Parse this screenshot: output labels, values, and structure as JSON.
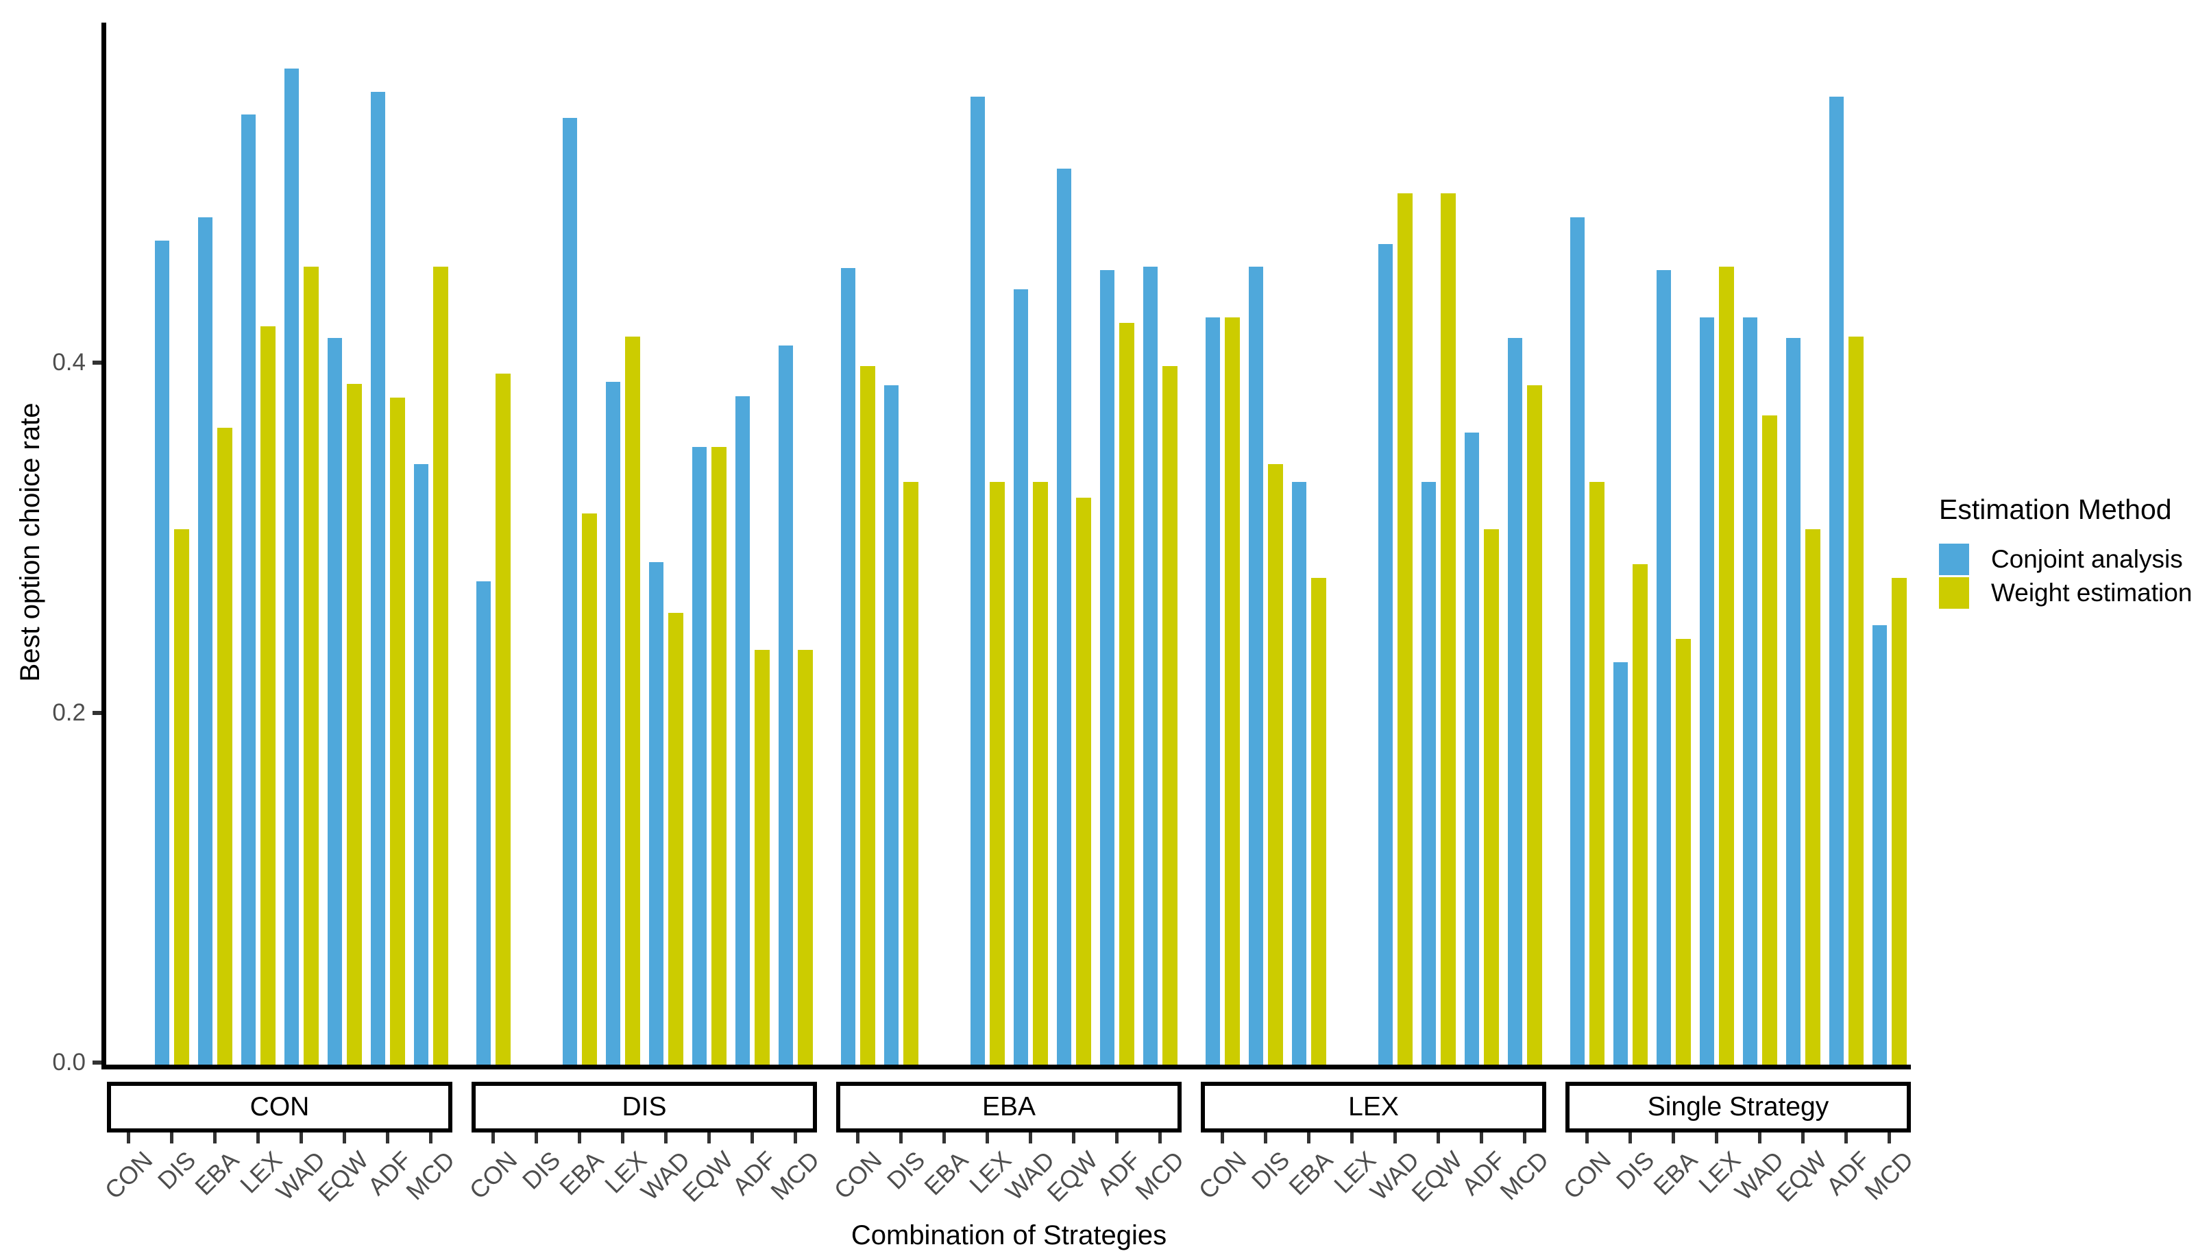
{
  "figure": {
    "background": "#FFFFFF",
    "y_axis": {
      "title": "Best option choice rate",
      "ticks": [
        {
          "label": "0.0",
          "value": 0.0
        },
        {
          "label": "0.2",
          "value": 0.2
        },
        {
          "label": "0.4",
          "value": 0.4
        }
      ]
    },
    "x_axis": {
      "title": "Combination of Strategies"
    },
    "legend": {
      "title": "Estimation Method",
      "position": "right",
      "items": [
        {
          "label": "Conjoint analysis",
          "color": "#4FA8DB"
        },
        {
          "label": "Weight estimation",
          "color": "#CCCC00"
        }
      ]
    }
  },
  "chart_data": {
    "type": "bar",
    "grouped": true,
    "faceted": true,
    "title": "",
    "xlabel": "Combination of Strategies",
    "ylabel": "Best option choice rate",
    "ylim": [
      0,
      0.595
    ],
    "ytick_interval": 0.2,
    "grid": false,
    "legend_position": "right",
    "categories": [
      "CON",
      "DIS",
      "EBA",
      "LEX",
      "WAD",
      "EQW",
      "ADF",
      "MCD"
    ],
    "series_names": [
      "Conjoint analysis",
      "Weight estimation"
    ],
    "facets": [
      {
        "label": "CON",
        "series": [
          {
            "name": "Conjoint analysis",
            "values": [
              null,
              0.47,
              0.483,
              0.542,
              0.568,
              0.414,
              0.555,
              0.342
            ]
          },
          {
            "name": "Weight estimation",
            "values": [
              null,
              0.305,
              0.363,
              0.421,
              0.455,
              0.388,
              0.38,
              0.455
            ]
          }
        ]
      },
      {
        "label": "DIS",
        "series": [
          {
            "name": "Conjoint analysis",
            "values": [
              0.275,
              null,
              0.54,
              0.389,
              0.286,
              0.352,
              0.381,
              0.41
            ]
          },
          {
            "name": "Weight estimation",
            "values": [
              0.394,
              null,
              0.314,
              0.415,
              0.257,
              0.352,
              0.236,
              0.236
            ]
          }
        ]
      },
      {
        "label": "EBA",
        "series": [
          {
            "name": "Conjoint analysis",
            "values": [
              0.454,
              0.387,
              null,
              0.552,
              0.442,
              0.511,
              0.453,
              0.455
            ]
          },
          {
            "name": "Weight estimation",
            "values": [
              0.398,
              0.332,
              null,
              0.332,
              0.332,
              0.323,
              0.423,
              0.398
            ]
          }
        ]
      },
      {
        "label": "LEX",
        "series": [
          {
            "name": "Conjoint analysis",
            "values": [
              0.426,
              0.455,
              0.332,
              null,
              0.468,
              0.332,
              0.36,
              0.414
            ]
          },
          {
            "name": "Weight estimation",
            "values": [
              0.426,
              0.342,
              0.277,
              null,
              0.497,
              0.497,
              0.305,
              0.387
            ]
          }
        ]
      },
      {
        "label": "Single Strategy",
        "series": [
          {
            "name": "Conjoint analysis",
            "values": [
              0.483,
              0.229,
              0.453,
              0.426,
              0.426,
              0.414,
              0.552,
              0.25
            ]
          },
          {
            "name": "Weight estimation",
            "values": [
              0.332,
              0.285,
              0.242,
              0.455,
              0.37,
              0.305,
              0.415,
              0.277
            ]
          }
        ]
      }
    ]
  }
}
